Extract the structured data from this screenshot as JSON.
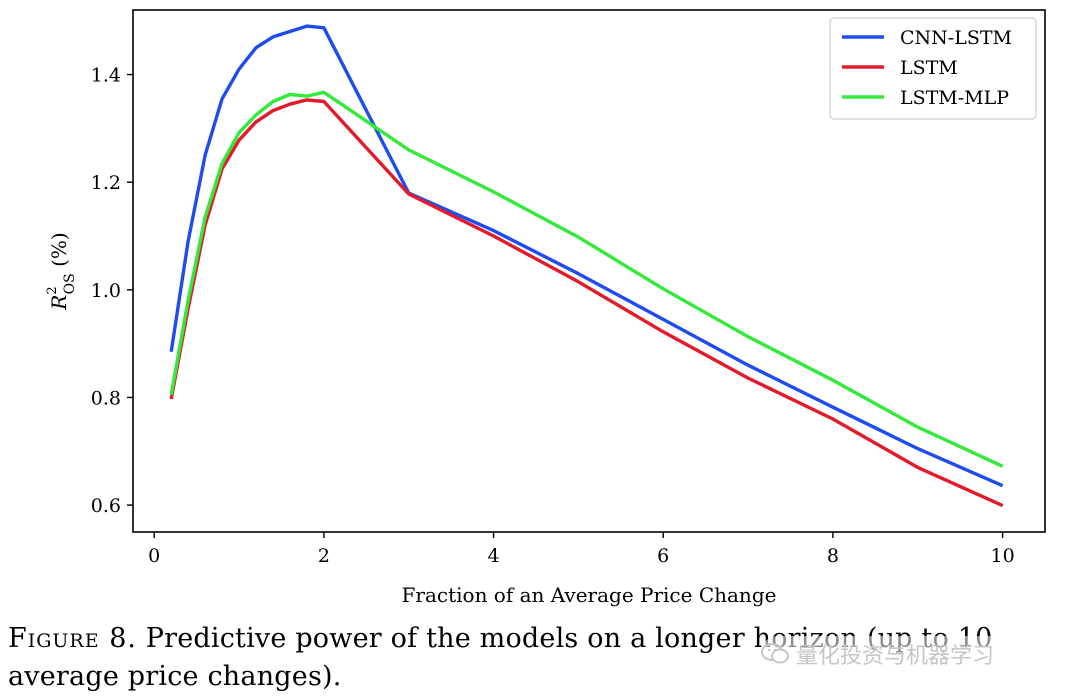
{
  "chart_data": {
    "type": "line",
    "title": "",
    "xlabel": "Fraction of an Average Price Change",
    "ylabel_main": "R",
    "ylabel_sup": "2",
    "ylabel_sub": "OS",
    "ylabel_unit": " (%)",
    "xlim": [
      -0.25,
      10.5
    ],
    "ylim": [
      0.55,
      1.52
    ],
    "xticks": [
      0,
      2,
      4,
      6,
      8,
      10
    ],
    "xtick_labels": [
      "0",
      "2",
      "4",
      "6",
      "8",
      "10"
    ],
    "yticks": [
      0.6,
      0.8,
      1.0,
      1.2,
      1.4
    ],
    "ytick_labels": [
      "0.6",
      "0.8",
      "1.0",
      "1.2",
      "1.4"
    ],
    "grid": false,
    "legend_position": "top-right",
    "series": [
      {
        "name": "CNN-LSTM",
        "color": "#1f4cf0",
        "x": [
          0.2,
          0.4,
          0.6,
          0.8,
          1.0,
          1.2,
          1.4,
          1.6,
          1.8,
          2.0,
          3.0,
          4.0,
          5.0,
          6.0,
          7.0,
          8.0,
          9.0,
          10.0
        ],
        "y": [
          0.885,
          1.09,
          1.25,
          1.355,
          1.41,
          1.45,
          1.47,
          1.48,
          1.49,
          1.487,
          1.18,
          1.11,
          1.03,
          0.945,
          0.86,
          0.782,
          0.705,
          0.636
        ]
      },
      {
        "name": "LSTM",
        "color": "#e31a2a",
        "x": [
          0.2,
          0.4,
          0.6,
          0.8,
          1.0,
          1.2,
          1.4,
          1.6,
          1.8,
          2.0,
          3.0,
          4.0,
          5.0,
          6.0,
          7.0,
          8.0,
          9.0,
          10.0
        ],
        "y": [
          0.797,
          0.965,
          1.12,
          1.225,
          1.278,
          1.312,
          1.333,
          1.345,
          1.353,
          1.35,
          1.178,
          1.1,
          1.015,
          0.922,
          0.836,
          0.76,
          0.67,
          0.599
        ]
      },
      {
        "name": "LSTM-MLP",
        "color": "#33ea3a",
        "x": [
          0.2,
          0.4,
          0.6,
          0.8,
          1.0,
          1.2,
          1.4,
          1.6,
          1.8,
          2.0,
          3.0,
          4.0,
          5.0,
          6.0,
          7.0,
          8.0,
          9.0,
          10.0
        ],
        "y": [
          0.805,
          0.98,
          1.135,
          1.235,
          1.292,
          1.325,
          1.35,
          1.363,
          1.36,
          1.367,
          1.26,
          1.182,
          1.098,
          1.002,
          0.913,
          0.832,
          0.745,
          0.672
        ]
      }
    ]
  },
  "caption": {
    "label": "Figure 8.",
    "text": " Predictive power of the models on a longer horizon (up to 10 average price changes)."
  },
  "watermark": {
    "text": "量化投资与机器学习",
    "icon": "wechat-icon"
  }
}
